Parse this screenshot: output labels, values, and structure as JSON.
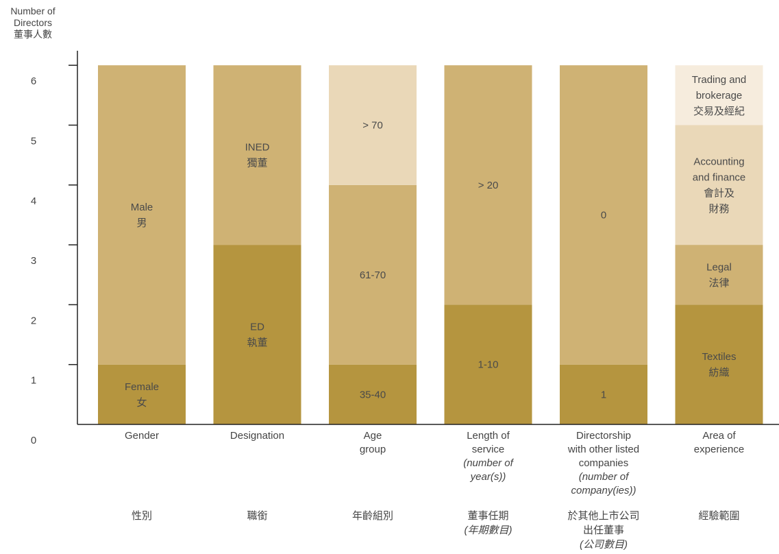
{
  "chart_data": {
    "type": "bar",
    "stacked": true,
    "y_axis": {
      "title_lines": [
        "Number of",
        "Directors",
        "董事人數"
      ],
      "ticks": [
        0,
        1,
        2,
        3,
        4,
        5,
        6
      ],
      "ylim": [
        0,
        6
      ]
    },
    "categories": [
      {
        "label_en": [
          "Gender"
        ],
        "label_zh": [
          "性別"
        ],
        "segments": [
          {
            "value": 1,
            "labels": [
              "Female",
              "女"
            ],
            "color": "#b5953f"
          },
          {
            "value": 5,
            "labels": [
              "Male",
              "男"
            ],
            "color": "#cfb274"
          }
        ]
      },
      {
        "label_en": [
          "Designation"
        ],
        "label_zh": [
          "職銜"
        ],
        "segments": [
          {
            "value": 3,
            "labels": [
              "ED",
              "執董"
            ],
            "color": "#b5953f"
          },
          {
            "value": 3,
            "labels": [
              "INED",
              "獨董"
            ],
            "color": "#cfb274"
          }
        ]
      },
      {
        "label_en": [
          "Age",
          "group"
        ],
        "label_zh": [
          "年齡組別"
        ],
        "segments": [
          {
            "value": 1,
            "labels": [
              "35-40"
            ],
            "color": "#b5953f"
          },
          {
            "value": 3,
            "labels": [
              "61-70"
            ],
            "color": "#cfb274"
          },
          {
            "value": 2,
            "labels": [
              "> 70"
            ],
            "color": "#ead8b8"
          }
        ]
      },
      {
        "label_en": [
          "Length of",
          "service",
          "(number of",
          "year(s))"
        ],
        "label_en_italic_from": 2,
        "label_zh": [
          "董事任期",
          "(年期數目)"
        ],
        "label_zh_italic_from": 1,
        "segments": [
          {
            "value": 2,
            "labels": [
              "1-10"
            ],
            "color": "#b5953f"
          },
          {
            "value": 4,
            "labels": [
              "> 20"
            ],
            "color": "#cfb274"
          }
        ]
      },
      {
        "label_en": [
          "Directorship",
          "with other listed",
          "companies",
          "(number of",
          "company(ies))"
        ],
        "label_en_italic_from": 3,
        "label_zh": [
          "於其他上市公司",
          "出任董事",
          "(公司數目)"
        ],
        "label_zh_italic_from": 2,
        "segments": [
          {
            "value": 1,
            "labels": [
              "1"
            ],
            "color": "#b5953f"
          },
          {
            "value": 5,
            "labels": [
              "0"
            ],
            "color": "#cfb274"
          }
        ]
      },
      {
        "label_en": [
          "Area of",
          "experience"
        ],
        "label_zh": [
          "經驗範圍"
        ],
        "segments": [
          {
            "value": 2,
            "labels": [
              "Textiles",
              "紡織"
            ],
            "color": "#b5953f"
          },
          {
            "value": 1,
            "labels": [
              "Legal",
              "法律"
            ],
            "color": "#cfb274"
          },
          {
            "value": 2,
            "labels": [
              "Accounting",
              "and finance",
              "會計及",
              "財務"
            ],
            "color": "#ead8b8"
          },
          {
            "value": 1,
            "labels": [
              "Trading and",
              "brokerage",
              "交易及經紀"
            ],
            "color": "#f6ecdd"
          }
        ]
      }
    ],
    "colors": {
      "axis": "#222222",
      "text": "#444444"
    }
  }
}
